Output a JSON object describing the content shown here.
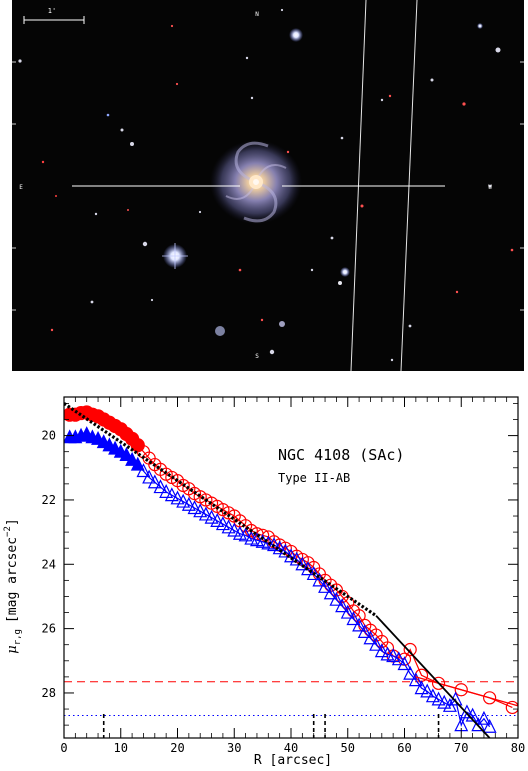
{
  "image_panel": {
    "scale_bar_label": "1'",
    "compass_top": "N",
    "compass_left": "E",
    "compass_right": "W",
    "compass_bottom": "S",
    "colors": {
      "background": "#050505",
      "galaxy_core": "#f2d8b4",
      "galaxy_arms": "#9a9ac8",
      "marker": "#ffffff"
    }
  },
  "chart_data": {
    "type": "scatter",
    "title": "NGC 4108 (SAc)",
    "subtitle": "Type II-AB",
    "xlabel": "R [arcsec]",
    "ylabel_prefix": "μ",
    "ylabel_sub": "r,g",
    "ylabel_units": "[mag arcsec",
    "ylabel_units_sup": "−2",
    "ylabel_units_close": "]",
    "xlim": [
      0,
      80
    ],
    "ylim": [
      29.4,
      18.8
    ],
    "y_inverted": true,
    "x_ticks": [
      0,
      10,
      20,
      30,
      40,
      50,
      60,
      70,
      80
    ],
    "y_ticks": [
      20,
      22,
      24,
      26,
      28
    ],
    "series": [
      {
        "color": "#ff0000",
        "marker": "circle",
        "fit_line": true,
        "x": [
          1,
          2,
          3,
          4,
          5,
          6,
          7,
          8,
          9,
          10,
          11,
          12,
          13,
          14,
          15,
          16,
          17,
          18,
          19,
          20,
          21,
          22,
          23,
          24,
          25,
          26,
          27,
          28,
          29,
          30,
          31,
          32,
          33,
          34,
          35,
          36,
          37,
          38,
          39,
          40,
          41,
          42,
          43,
          44,
          45,
          46,
          47,
          48,
          49,
          50,
          51,
          52,
          53,
          54,
          55,
          56,
          57,
          58,
          60,
          61,
          63,
          66,
          70,
          75,
          79
        ],
        "y": [
          19.35,
          19.35,
          19.3,
          19.28,
          19.35,
          19.4,
          19.5,
          19.6,
          19.7,
          19.8,
          19.95,
          20.1,
          20.3,
          20.5,
          20.7,
          20.9,
          21.05,
          21.2,
          21.3,
          21.4,
          21.55,
          21.65,
          21.8,
          21.9,
          22.0,
          22.1,
          22.2,
          22.3,
          22.4,
          22.5,
          22.65,
          22.8,
          22.95,
          23.05,
          23.1,
          23.15,
          23.3,
          23.4,
          23.5,
          23.6,
          23.75,
          23.85,
          23.95,
          24.1,
          24.3,
          24.5,
          24.65,
          24.8,
          25.0,
          25.2,
          25.45,
          25.6,
          25.9,
          26.05,
          26.2,
          26.4,
          26.6,
          26.85,
          26.95,
          26.65,
          27.45,
          27.7,
          27.9,
          28.15,
          28.45
        ]
      },
      {
        "color": "#0000ff",
        "marker": "triangle",
        "fit_line": true,
        "x": [
          1,
          2,
          3,
          4,
          5,
          6,
          7,
          8,
          9,
          10,
          11,
          12,
          13,
          14,
          15,
          16,
          17,
          18,
          19,
          20,
          21,
          22,
          23,
          24,
          25,
          26,
          27,
          28,
          29,
          30,
          31,
          32,
          33,
          34,
          35,
          36,
          37,
          38,
          39,
          40,
          41,
          42,
          43,
          44,
          45,
          46,
          47,
          48,
          49,
          50,
          51,
          52,
          53,
          54,
          55,
          56,
          57,
          58,
          59,
          60,
          61,
          62,
          63,
          64,
          65,
          66,
          67,
          68,
          69,
          70,
          71,
          72,
          73,
          74,
          75
        ],
        "y": [
          20.05,
          20.05,
          20.0,
          19.95,
          20.05,
          20.1,
          20.2,
          20.3,
          20.4,
          20.5,
          20.6,
          20.75,
          20.9,
          21.1,
          21.3,
          21.45,
          21.6,
          21.75,
          21.85,
          21.95,
          22.05,
          22.15,
          22.25,
          22.35,
          22.45,
          22.55,
          22.65,
          22.75,
          22.85,
          22.95,
          23.05,
          23.1,
          23.2,
          23.25,
          23.3,
          23.35,
          23.4,
          23.5,
          23.6,
          23.75,
          23.85,
          24.0,
          24.15,
          24.3,
          24.5,
          24.7,
          24.9,
          25.1,
          25.3,
          25.5,
          25.7,
          25.9,
          26.1,
          26.3,
          26.5,
          26.7,
          26.8,
          26.85,
          26.95,
          27.1,
          27.4,
          27.6,
          27.85,
          27.95,
          28.1,
          28.2,
          28.3,
          28.4,
          28.2,
          29.0,
          28.6,
          28.7,
          29.0,
          28.8,
          29.05
        ]
      }
    ],
    "fit_black_dotted": {
      "color": "#000000",
      "x": [
        0,
        55
      ],
      "y": [
        19.0,
        25.6
      ]
    },
    "fit_black_solid": {
      "color": "#000000",
      "x": [
        55,
        75
      ],
      "y": [
        25.6,
        29.4
      ]
    },
    "fit_red_outer": {
      "color": "#ff0000",
      "x": [
        62,
        80
      ],
      "y": [
        27.5,
        28.4
      ]
    },
    "hline_red_dashed": {
      "y": 27.65,
      "color": "#ff0000"
    },
    "hline_blue_dotted": {
      "y": 28.7,
      "color": "#0000ff"
    },
    "vlines_dashed": [
      7,
      44,
      46,
      66
    ]
  }
}
